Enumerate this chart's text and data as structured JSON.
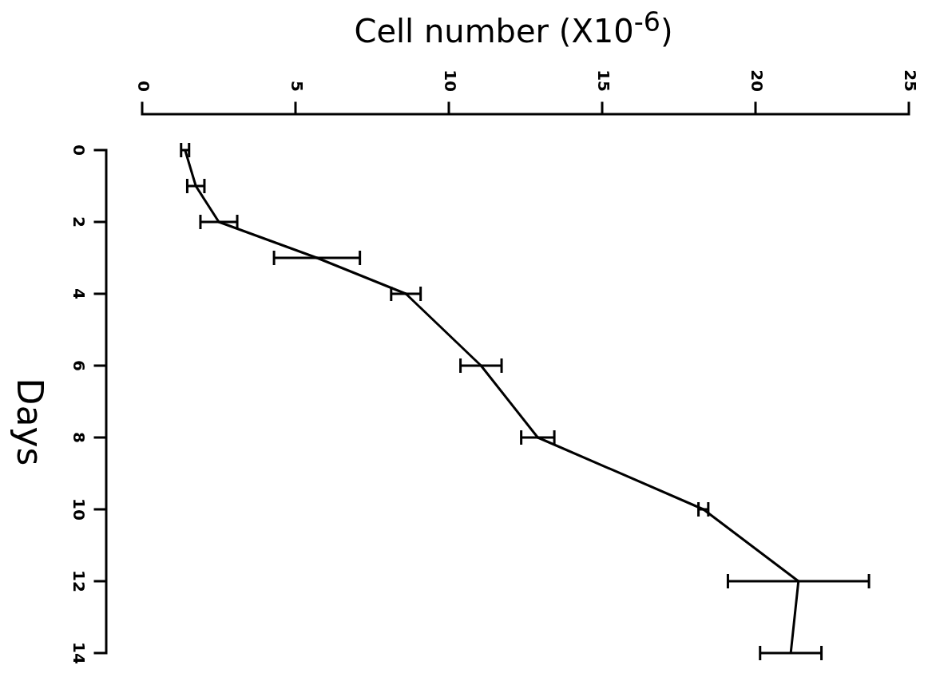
{
  "chart_data": {
    "type": "line",
    "orientation": "horizontal",
    "xlabel": "Cell number (X10$^{-6}$)",
    "ylabel": "Days",
    "x": [
      0,
      1,
      2,
      3,
      4,
      6,
      8,
      10,
      12,
      14
    ],
    "values": [
      1.4,
      1.75,
      2.5,
      5.7,
      8.6,
      11.05,
      12.9,
      18.3,
      21.4,
      21.15
    ],
    "errors": [
      0.13,
      0.28,
      0.6,
      1.4,
      0.48,
      0.67,
      0.54,
      0.16,
      2.3,
      1.0
    ],
    "color": "#000000",
    "marker": "none",
    "line_style": "solid",
    "xlim": [
      0,
      25
    ],
    "xticks": [
      0,
      5,
      10,
      15,
      20,
      25
    ],
    "ylim": [
      14,
      0
    ],
    "yticks": [
      0,
      2,
      4,
      6,
      8,
      10,
      12,
      14
    ]
  }
}
